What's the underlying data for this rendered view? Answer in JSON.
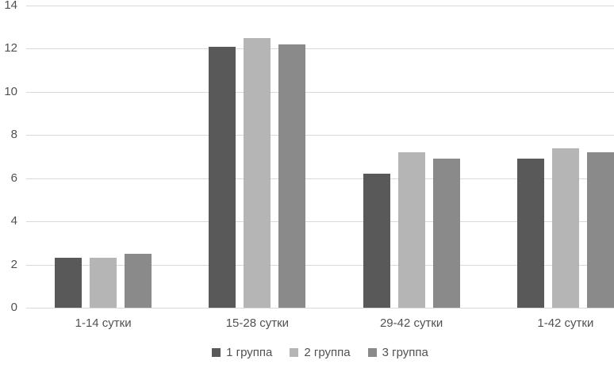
{
  "chart_data": {
    "type": "bar",
    "title": "",
    "categories": [
      "1-14 сутки",
      "15-28 сутки",
      "29-42 сутки",
      "1-42 сутки"
    ],
    "series": [
      {
        "name": "1 группа",
        "color": "#595959",
        "values": [
          2.3,
          12.1,
          6.2,
          6.9
        ]
      },
      {
        "name": "2 группа",
        "color": "#b5b5b5",
        "values": [
          2.3,
          12.5,
          7.2,
          7.4
        ]
      },
      {
        "name": "3 группа",
        "color": "#8a8a8a",
        "values": [
          2.5,
          12.2,
          6.9,
          7.2
        ]
      }
    ],
    "xlabel": "",
    "ylabel": "",
    "y_axis": {
      "min": 0,
      "max": 14,
      "step": 2,
      "ticks": [
        0,
        2,
        4,
        6,
        8,
        10,
        12,
        14
      ]
    },
    "grid": true,
    "legend_position": "bottom",
    "colors": {
      "gridline": "#d9d9d9",
      "text": "#515151",
      "background": "#ffffff"
    }
  }
}
